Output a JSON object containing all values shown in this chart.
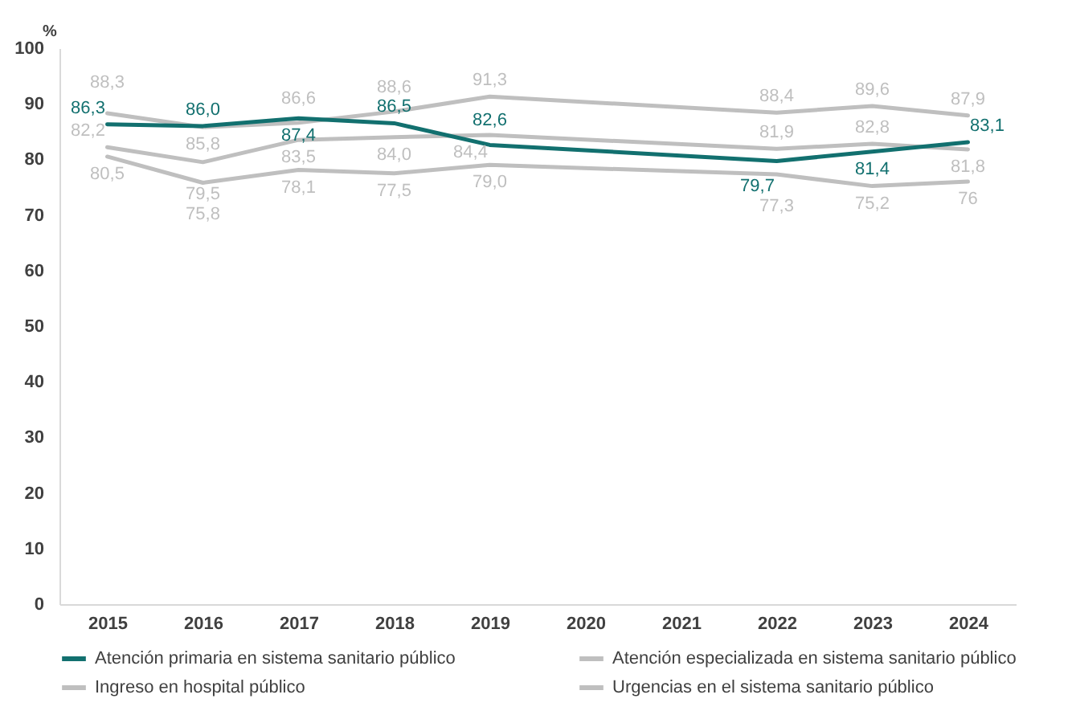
{
  "chart_data": {
    "type": "line",
    "ylabel": "%",
    "categories": [
      "2015",
      "2016",
      "2017",
      "2018",
      "2019",
      "2020",
      "2021",
      "2022",
      "2023",
      "2024"
    ],
    "ylim": [
      0,
      100
    ],
    "yticks": [
      0,
      10,
      20,
      30,
      40,
      50,
      60,
      70,
      80,
      90,
      100
    ],
    "grid": false,
    "legend": "bottom",
    "series": [
      {
        "name": "Atención primaria en sistema sanitario público",
        "color": "#12706f",
        "values": [
          86.3,
          86.0,
          87.4,
          86.5,
          82.6,
          null,
          null,
          79.7,
          81.4,
          83.1
        ],
        "value_labels": [
          "86,3",
          "86,0",
          "87,4",
          "86,5",
          "82,6",
          null,
          null,
          "79,7",
          "81,4",
          "83,1"
        ]
      },
      {
        "name": "Atención especializada en sistema sanitario público",
        "color": "#bfbfbf",
        "values": [
          82.2,
          79.5,
          83.5,
          84.0,
          84.4,
          null,
          null,
          81.9,
          82.8,
          81.8
        ],
        "value_labels": [
          "82,2",
          "79,5",
          "83,5",
          "84,0",
          "84,4",
          null,
          null,
          "81,9",
          "82,8",
          "81,8"
        ]
      },
      {
        "name": "Ingreso en hospital público",
        "color": "#bfbfbf",
        "values": [
          88.3,
          85.8,
          86.6,
          88.6,
          91.3,
          null,
          null,
          88.4,
          89.6,
          87.9
        ],
        "value_labels": [
          "88,3",
          "85,8",
          "86,6",
          "88,6",
          "91,3",
          null,
          null,
          "88,4",
          "89,6",
          "87,9"
        ]
      },
      {
        "name": "Urgencias en el sistema sanitario público",
        "color": "#bfbfbf",
        "values": [
          80.5,
          75.8,
          78.1,
          77.5,
          79.0,
          null,
          null,
          77.3,
          75.2,
          76
        ],
        "value_labels": [
          "80,5",
          "75,8",
          "78,1",
          "77,5",
          "79,0",
          null,
          null,
          "77,3",
          "75,2",
          "76"
        ]
      }
    ]
  }
}
